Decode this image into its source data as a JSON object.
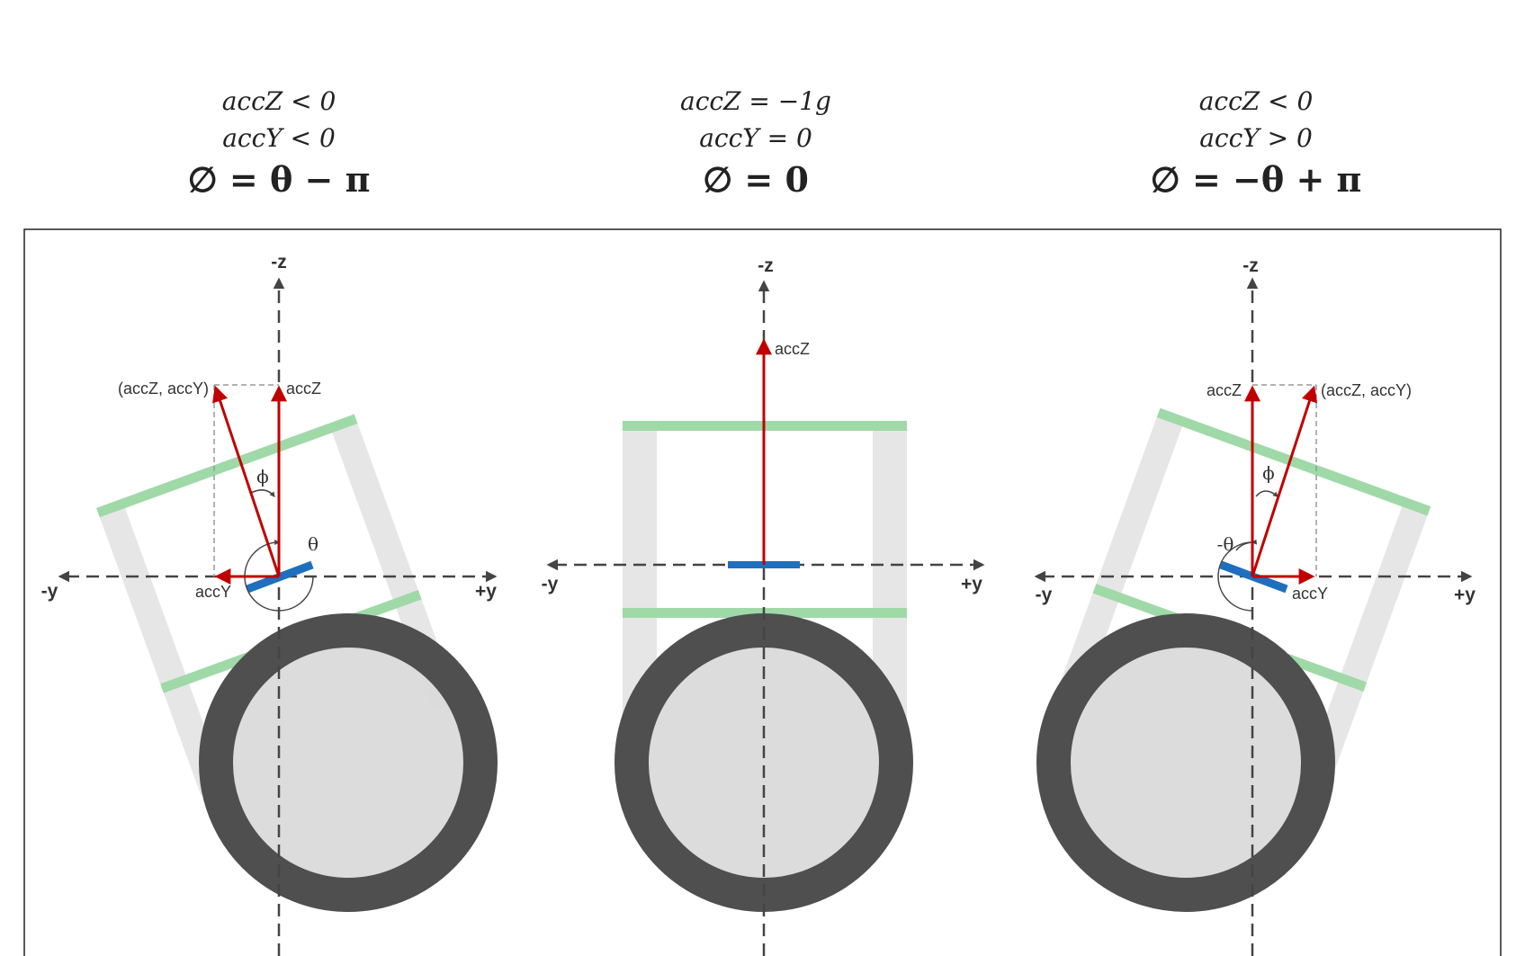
{
  "panels": [
    {
      "line1": "accZ < 0",
      "line2": "accY < 0",
      "formula": "∅ = θ − π",
      "axes": {
        "top": "-z",
        "left": "-y",
        "right": "+y"
      },
      "vectors": {
        "resultant": "(accZ, accY)",
        "z": "accZ",
        "y": "accY"
      },
      "angles": {
        "phi": "ϕ",
        "theta": "θ"
      }
    },
    {
      "line1": "accZ = −1g",
      "line2": "accY = 0",
      "formula": "∅ = 0",
      "axes": {
        "top": "-z",
        "left": "-y",
        "right": "+y"
      },
      "vectors": {
        "z": "accZ"
      }
    },
    {
      "line1": "accZ < 0",
      "line2": "accY > 0",
      "formula": "∅ = −θ + π",
      "axes": {
        "top": "-z",
        "left": "-y",
        "right": "+y"
      },
      "vectors": {
        "resultant": "(accZ, accY)",
        "z": "accZ",
        "y": "accY"
      },
      "angles": {
        "phi": "ϕ",
        "theta": "-θ"
      }
    }
  ],
  "colors": {
    "vector": "#c00000",
    "sensor": "#1f6fbf",
    "frame_green": "#9fd9a8",
    "frame_gray": "#e6e6e6",
    "wheel": "#4f4f4f",
    "wheel_inner": "#d9d9d9",
    "axis": "#444444"
  }
}
